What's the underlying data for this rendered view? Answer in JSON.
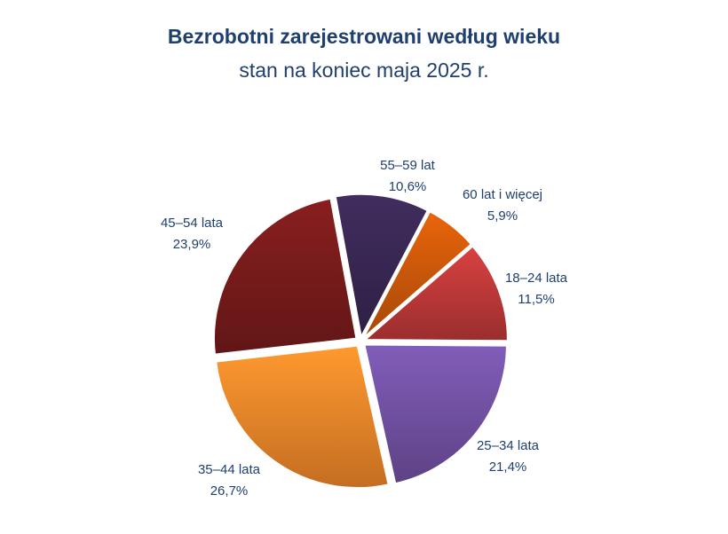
{
  "title": "Bezrobotni zarejestrowani według wieku",
  "subtitle": "stan na koniec maja 2025 r.",
  "chart_data": {
    "type": "pie",
    "title": "Bezrobotni zarejestrowani według wieku",
    "subtitle": "stan na koniec maja 2025 r.",
    "slices": [
      {
        "label": "18–24 lata",
        "value_text": "11,5%",
        "value": 11.5,
        "color": "#c23a3a"
      },
      {
        "label": "25–34 lata",
        "value_text": "21,4%",
        "value": 21.4,
        "color": "#7453a6"
      },
      {
        "label": "35–44 lata",
        "value_text": "26,7%",
        "value": 26.7,
        "color": "#f5892a"
      },
      {
        "label": "45–54 lata",
        "value_text": "23,9%",
        "value": 23.9,
        "color": "#7a1c1c"
      },
      {
        "label": "55–59 lat",
        "value_text": "10,6%",
        "value": 10.6,
        "color": "#3a2855"
      },
      {
        "label": "60 lat i więcej",
        "value_text": "5,9%",
        "value": 5.9,
        "color": "#d05a0a"
      }
    ],
    "legend": "none"
  }
}
